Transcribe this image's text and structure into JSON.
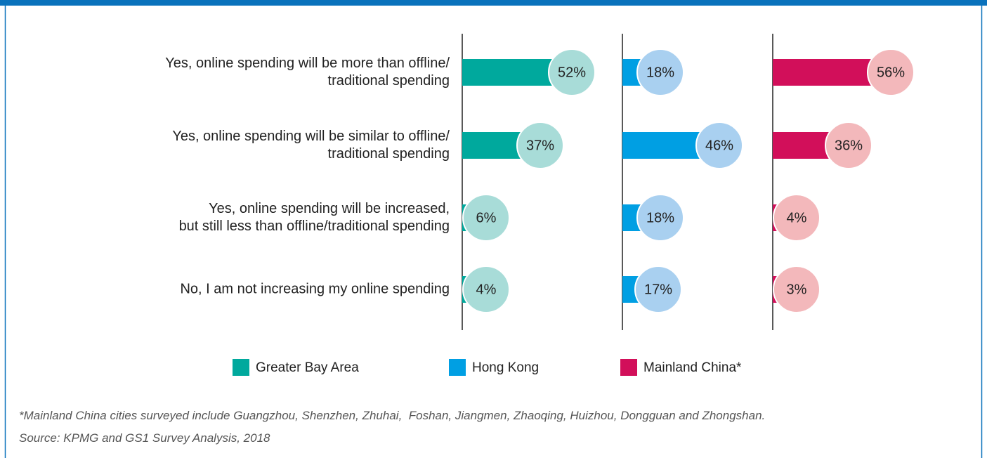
{
  "chart_data": {
    "type": "bar",
    "orientation": "horizontal",
    "categories": [
      "Yes, online spending will be more than offline/\ntraditional spending",
      "Yes, online spending will be similar to offline/\ntraditional spending",
      "Yes, online spending will be increased,\nbut still less than offline/traditional spending",
      "No, I am not increasing my online spending"
    ],
    "series": [
      {
        "name": "Greater Bay Area",
        "color": "#00a99d",
        "bubble_color": "#a8dcd8",
        "values": [
          52,
          37,
          6,
          4
        ],
        "value_labels": [
          "52%",
          "37%",
          "6%",
          "4%"
        ]
      },
      {
        "name": "Hong Kong",
        "color": "#009fe3",
        "bubble_color": "#a9d0f0",
        "values": [
          18,
          46,
          18,
          17
        ],
        "value_labels": [
          "18%",
          "46%",
          "18%",
          "17%"
        ]
      },
      {
        "name": "Mainland China*",
        "color": "#d20f5a",
        "bubble_color": "#f3b8bb",
        "values": [
          56,
          36,
          4,
          3
        ],
        "value_labels": [
          "56%",
          "36%",
          "4%",
          "3%"
        ]
      }
    ],
    "xlim": [
      0,
      70
    ]
  },
  "footnotes": [
    "*Mainland China cities surveyed include Guangzhou, Shenzhen, Zhuhai,  Foshan, Jiangmen, Zhaoqing, Huizhou, Dongguan and Zhongshan.",
    "Source: KPMG and GS1 Survey Analysis, 2018"
  ]
}
